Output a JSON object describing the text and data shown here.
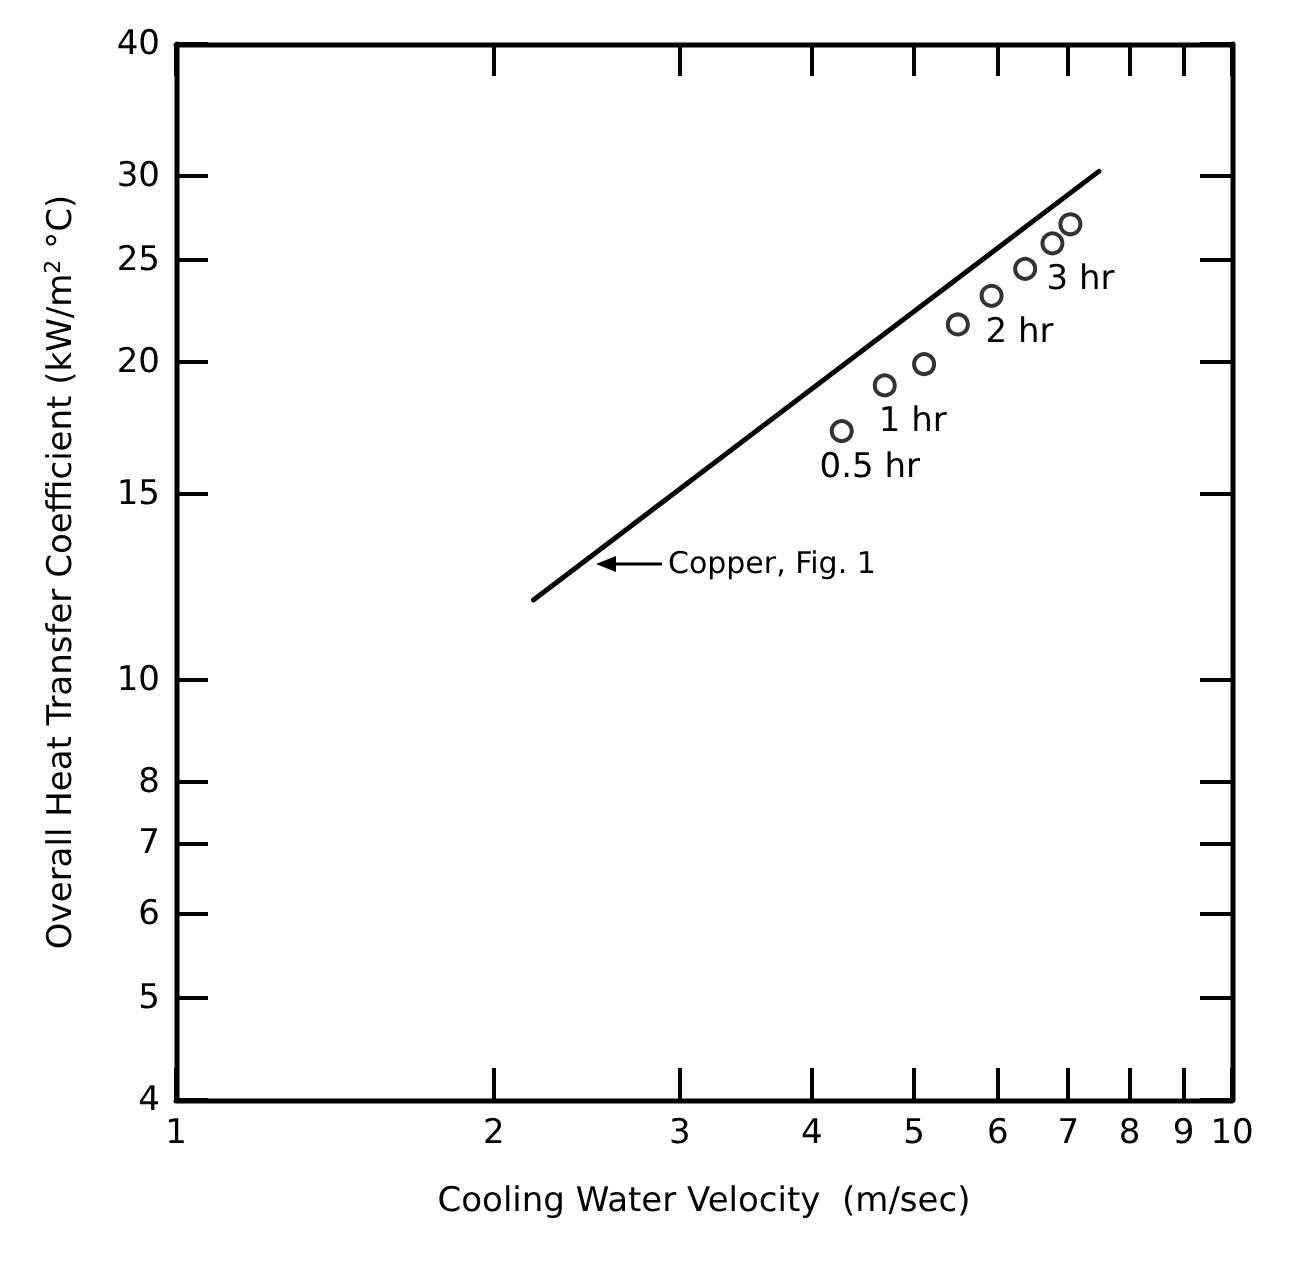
{
  "chart_data": {
    "type": "scatter",
    "xlabel": "Cooling Water Velocity  (m/sec)",
    "ylabel": "Overall Heat Transfer Coefficient (kW/m$^{2}$ °C)",
    "log": "xy",
    "grid": false,
    "xlim": [
      1,
      10
    ],
    "xticks": [
      1,
      2,
      3,
      4,
      5,
      6,
      7,
      8,
      9,
      10
    ],
    "ylim": [
      4,
      40
    ],
    "yticks": [
      4,
      5,
      6,
      7,
      8,
      10,
      15,
      20,
      25,
      30,
      40
    ],
    "series": [
      {
        "type": "line",
        "color": "#000000",
        "marker": "none",
        "line_style": "solid",
        "x": [
          2.18,
          7.48
        ],
        "values": [
          11.9,
          30.3
        ]
      },
      {
        "color": "#000000",
        "marker": "circle",
        "x": [
          4.27,
          4.69,
          5.11,
          5.5,
          5.92,
          6.37,
          6.76,
          7.03
        ],
        "values": [
          17.2,
          19.0,
          19.9,
          21.7,
          23.1,
          24.5,
          25.9,
          27.0
        ]
      }
    ],
    "annotations": [
      {
        "text": "0.5 hr",
        "x": 4.27,
        "y": 17.2
      },
      {
        "text": "1 hr",
        "x": 4.69,
        "y": 19.0
      },
      {
        "text": "2 hr",
        "x": 5.92,
        "y": 23.1
      },
      {
        "text": "3 hr",
        "x": 6.76,
        "y": 25.9
      },
      "Copper, Fig. 1"
    ]
  }
}
